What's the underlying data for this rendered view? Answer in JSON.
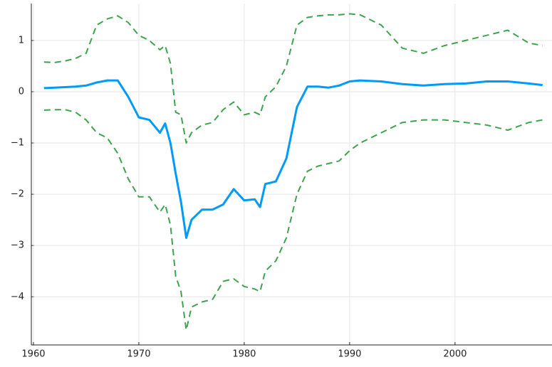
{
  "chart_data": {
    "type": "line",
    "x": [
      1961,
      1962,
      1963,
      1964,
      1965,
      1966,
      1967,
      1968,
      1969,
      1970,
      1971,
      1972,
      1972.5,
      1973,
      1973.5,
      1974,
      1974.5,
      1975,
      1976,
      1977,
      1978,
      1979,
      1980,
      1981,
      1981.5,
      1982,
      1983,
      1984,
      1985,
      1986,
      1987,
      1988,
      1989,
      1990,
      1991,
      1993,
      1995,
      1997,
      1999,
      2001,
      2003,
      2005,
      2007,
      2008.3
    ],
    "series": [
      {
        "color": "#009af9",
        "dashed": false,
        "values": [
          0.07,
          0.08,
          0.09,
          0.1,
          0.12,
          0.18,
          0.22,
          0.22,
          -0.1,
          -0.5,
          -0.55,
          -0.8,
          -0.62,
          -1.0,
          -1.6,
          -2.15,
          -2.85,
          -2.5,
          -2.3,
          -2.3,
          -2.2,
          -1.9,
          -2.12,
          -2.1,
          -2.25,
          -1.8,
          -1.75,
          -1.3,
          -0.3,
          0.1,
          0.1,
          0.08,
          0.12,
          0.2,
          0.22,
          0.2,
          0.15,
          0.12,
          0.15,
          0.16,
          0.2,
          0.2,
          0.16,
          0.13
        ]
      },
      {
        "color": "#3da44d",
        "dashed": true,
        "values": [
          0.58,
          0.57,
          0.6,
          0.65,
          0.75,
          1.3,
          1.42,
          1.48,
          1.35,
          1.1,
          1.0,
          0.82,
          0.9,
          0.55,
          -0.4,
          -0.45,
          -1.0,
          -0.8,
          -0.65,
          -0.6,
          -0.35,
          -0.2,
          -0.45,
          -0.4,
          -0.45,
          -0.1,
          0.1,
          0.5,
          1.3,
          1.45,
          1.48,
          1.5,
          1.5,
          1.52,
          1.5,
          1.3,
          0.85,
          0.75,
          0.9,
          1.0,
          1.1,
          1.2,
          0.95,
          0.9
        ]
      },
      {
        "color": "#3da44d",
        "dashed": true,
        "values": [
          -0.36,
          -0.35,
          -0.35,
          -0.4,
          -0.55,
          -0.8,
          -0.9,
          -1.2,
          -1.7,
          -2.05,
          -2.05,
          -2.35,
          -2.2,
          -2.6,
          -3.6,
          -3.9,
          -4.65,
          -4.2,
          -4.1,
          -4.05,
          -3.7,
          -3.65,
          -3.8,
          -3.85,
          -3.9,
          -3.5,
          -3.3,
          -2.85,
          -2.0,
          -1.55,
          -1.45,
          -1.4,
          -1.35,
          -1.15,
          -1.0,
          -0.8,
          -0.6,
          -0.55,
          -0.55,
          -0.6,
          -0.65,
          -0.75,
          -0.6,
          -0.55
        ]
      }
    ],
    "xlim": [
      1959.8,
      2009.2
    ],
    "xticks": [
      1960,
      1970,
      1980,
      1990,
      2000
    ],
    "ylim": [
      -4.94,
      1.72
    ],
    "yticks": [
      {
        "value": -4,
        "label": "−4"
      },
      {
        "value": -3,
        "label": "−3"
      },
      {
        "value": -2,
        "label": "−2"
      },
      {
        "value": -1,
        "label": "−1"
      },
      0,
      1
    ],
    "grid": true
  }
}
